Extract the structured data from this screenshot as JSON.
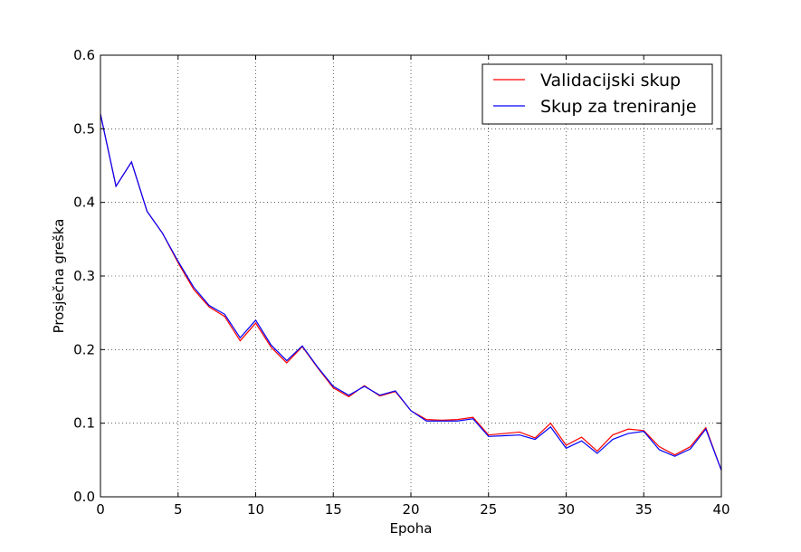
{
  "chart_data": {
    "type": "line",
    "xlabel": "Epoha",
    "ylabel": "Prosječna greška",
    "xlim": [
      0,
      40
    ],
    "ylim": [
      0.0,
      0.6
    ],
    "xticks": [
      0,
      5,
      10,
      15,
      20,
      25,
      30,
      35,
      40
    ],
    "yticks": [
      0.0,
      0.1,
      0.2,
      0.3,
      0.4,
      0.5,
      0.6
    ],
    "ytick_labels": [
      "0.0",
      "0.1",
      "0.2",
      "0.3",
      "0.4",
      "0.5",
      "0.6"
    ],
    "grid": true,
    "legend_position": "top-right",
    "x": [
      0,
      1,
      2,
      3,
      4,
      5,
      6,
      7,
      8,
      9,
      10,
      11,
      12,
      13,
      14,
      15,
      16,
      17,
      18,
      19,
      20,
      21,
      22,
      23,
      24,
      25,
      26,
      27,
      28,
      29,
      30,
      31,
      32,
      33,
      34,
      35,
      36,
      37,
      38,
      39,
      40
    ],
    "series": [
      {
        "name": "Validacijski skup",
        "color": "#ff0000",
        "values": [
          0.52,
          0.422,
          0.455,
          0.388,
          0.358,
          0.318,
          0.282,
          0.258,
          0.245,
          0.212,
          0.236,
          0.203,
          0.182,
          0.204,
          0.175,
          0.148,
          0.136,
          0.151,
          0.137,
          0.143,
          0.117,
          0.105,
          0.104,
          0.105,
          0.108,
          0.084,
          0.086,
          0.088,
          0.08,
          0.1,
          0.07,
          0.081,
          0.062,
          0.084,
          0.092,
          0.09,
          0.068,
          0.057,
          0.068,
          0.094,
          0.036
        ]
      },
      {
        "name": "Skup za treniranje",
        "color": "#0000ff",
        "values": [
          0.52,
          0.422,
          0.455,
          0.388,
          0.358,
          0.32,
          0.285,
          0.26,
          0.248,
          0.216,
          0.24,
          0.206,
          0.185,
          0.205,
          0.176,
          0.15,
          0.138,
          0.15,
          0.138,
          0.144,
          0.117,
          0.103,
          0.103,
          0.103,
          0.106,
          0.082,
          0.083,
          0.084,
          0.078,
          0.095,
          0.066,
          0.076,
          0.059,
          0.078,
          0.086,
          0.089,
          0.064,
          0.055,
          0.065,
          0.092,
          0.036
        ]
      }
    ]
  }
}
